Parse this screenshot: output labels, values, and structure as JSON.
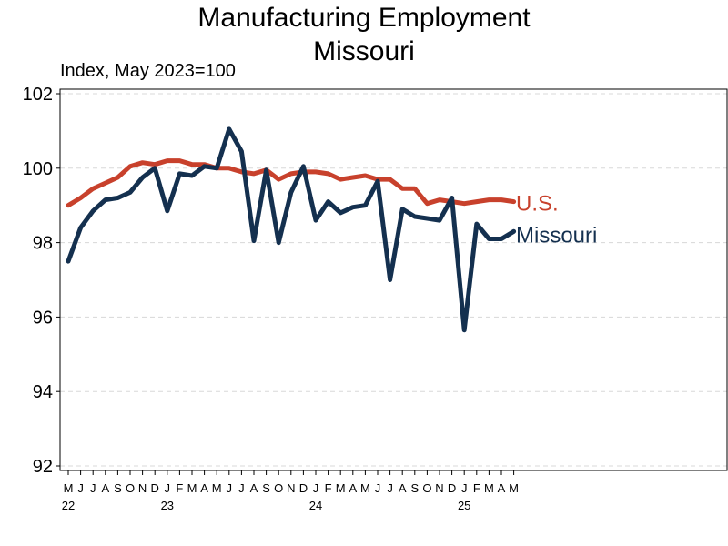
{
  "chart_data": {
    "type": "line",
    "title": "Manufacturing Employment",
    "subtitle": "Missouri",
    "ylabel": "Index, May 2023=100",
    "ylim": [
      92,
      102
    ],
    "yticks": [
      92,
      94,
      96,
      98,
      100,
      102
    ],
    "grid": true,
    "x": [
      "2022-05",
      "2022-06",
      "2022-07",
      "2022-08",
      "2022-09",
      "2022-10",
      "2022-11",
      "2022-12",
      "2023-01",
      "2023-02",
      "2023-03",
      "2023-04",
      "2023-05",
      "2023-06",
      "2023-07",
      "2023-08",
      "2023-09",
      "2023-10",
      "2023-11",
      "2023-12",
      "2024-01",
      "2024-02",
      "2024-03",
      "2024-04",
      "2024-05",
      "2024-06",
      "2024-07",
      "2024-08",
      "2024-09",
      "2024-10",
      "2024-11",
      "2024-12",
      "2025-01",
      "2025-02",
      "2025-03",
      "2025-04",
      "2025-05"
    ],
    "month_labels": [
      "M",
      "J",
      "J",
      "A",
      "S",
      "O",
      "N",
      "D",
      "J",
      "F",
      "M",
      "A",
      "M",
      "J",
      "J",
      "A",
      "S",
      "O",
      "N",
      "D",
      "J",
      "F",
      "M",
      "A",
      "M",
      "J",
      "J",
      "A",
      "S",
      "O",
      "N",
      "D",
      "J",
      "F",
      "M",
      "A",
      "M"
    ],
    "year_labels": [
      {
        "index": 0,
        "label": "22"
      },
      {
        "index": 8,
        "label": "23"
      },
      {
        "index": 20,
        "label": "24"
      },
      {
        "index": 32,
        "label": "25"
      }
    ],
    "series": [
      {
        "name": "U.S.",
        "color": "#c8412c",
        "values": [
          99.0,
          99.2,
          99.45,
          99.6,
          99.75,
          100.05,
          100.15,
          100.1,
          100.2,
          100.2,
          100.1,
          100.1,
          100.0,
          100.0,
          99.9,
          99.85,
          99.95,
          99.7,
          99.85,
          99.9,
          99.9,
          99.85,
          99.7,
          99.75,
          99.8,
          99.7,
          99.7,
          99.45,
          99.45,
          99.05,
          99.15,
          99.1,
          99.05,
          99.1,
          99.15,
          99.15,
          99.1
        ]
      },
      {
        "name": "Missouri",
        "color": "#14304f",
        "values": [
          97.5,
          98.4,
          98.85,
          99.15,
          99.2,
          99.35,
          99.75,
          100.0,
          98.85,
          99.85,
          99.8,
          100.05,
          100.0,
          101.05,
          100.45,
          98.05,
          99.95,
          98.0,
          99.35,
          100.05,
          98.6,
          99.1,
          98.8,
          98.95,
          99.0,
          99.65,
          97.0,
          98.9,
          98.7,
          98.65,
          98.6,
          99.2,
          95.65,
          98.5,
          98.1,
          98.1,
          98.3
        ]
      }
    ]
  }
}
